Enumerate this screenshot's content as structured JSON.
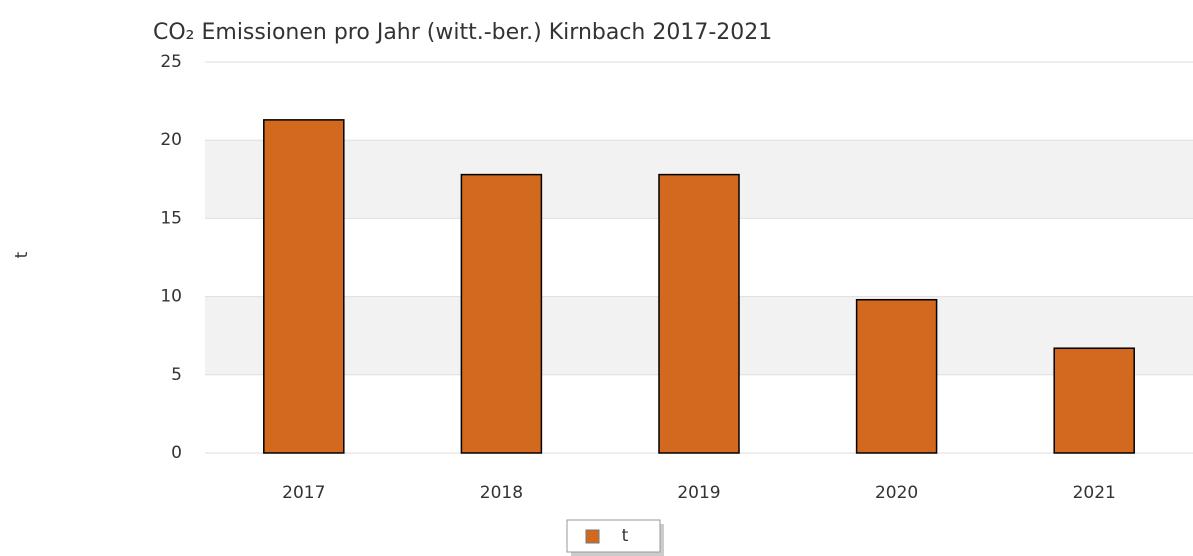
{
  "chart_data": {
    "type": "bar",
    "title": "CO₂ Emissionen pro Jahr (witt.-ber.) Kirnbach 2017-2021",
    "y_label": "t",
    "categories": [
      "2017",
      "2018",
      "2019",
      "2020",
      "2021"
    ],
    "series": [
      {
        "name": "t",
        "color": "#d2691e",
        "values": [
          21.3,
          17.8,
          17.8,
          9.8,
          6.7
        ]
      }
    ],
    "ylim": [
      0,
      25
    ],
    "yticks": [
      0,
      5,
      10,
      15,
      20,
      25
    ],
    "grid": true,
    "alternate_bands": true,
    "legend": "bottom"
  }
}
